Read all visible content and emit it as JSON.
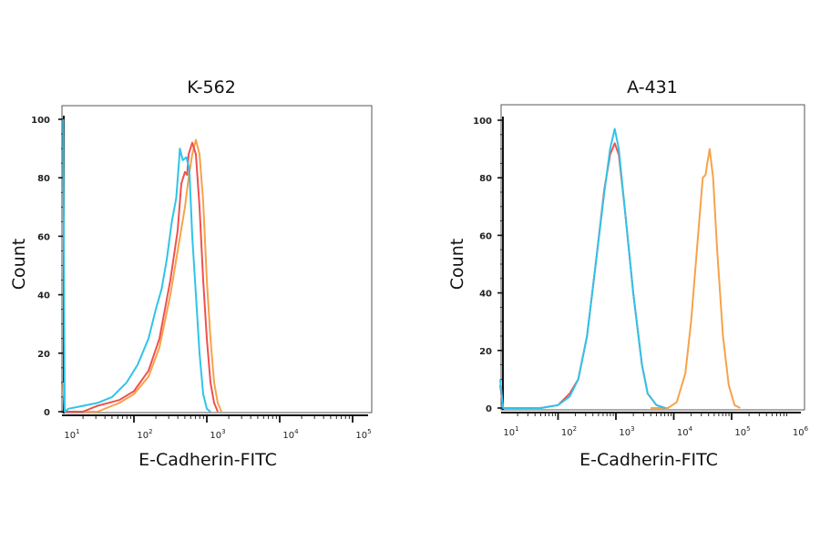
{
  "chart_data": [
    {
      "type": "line",
      "title": "K-562",
      "xlabel": "E-Cadherin-FITC",
      "ylabel": "Count",
      "xscale": "log",
      "xlim_log10": [
        1,
        5.2
      ],
      "ylim": [
        0,
        100
      ],
      "xticks": [
        "10^1",
        "10^2",
        "10^3",
        "10^4",
        "10^5"
      ],
      "yticks": [
        "0",
        "20",
        "40",
        "60",
        "80",
        "100"
      ],
      "grid": false,
      "series": [
        {
          "color": "#f7a24a",
          "x_log10": [
            1.03,
            1.05,
            1.5,
            1.8,
            2.0,
            2.2,
            2.35,
            2.5,
            2.6,
            2.7,
            2.75,
            2.8,
            2.85,
            2.9,
            2.95,
            3.0,
            3.05,
            3.1,
            3.15,
            3.2
          ],
          "y": [
            10,
            0,
            0,
            3,
            6,
            12,
            22,
            40,
            55,
            70,
            80,
            88,
            93,
            88,
            72,
            45,
            25,
            10,
            3,
            0
          ]
        },
        {
          "color": "#f05050",
          "x_log10": [
            1.05,
            1.3,
            1.5,
            1.8,
            2.0,
            2.2,
            2.35,
            2.5,
            2.6,
            2.65,
            2.7,
            2.73,
            2.75,
            2.8,
            2.85,
            2.9,
            2.95,
            3.0,
            3.05,
            3.1,
            3.15
          ],
          "y": [
            0,
            0,
            2,
            4,
            7,
            14,
            25,
            45,
            62,
            78,
            82,
            81,
            88,
            92,
            88,
            70,
            45,
            25,
            10,
            3,
            0
          ]
        },
        {
          "color": "#2ec4e8",
          "x_log10": [
            1.03,
            1.05,
            1.1,
            1.3,
            1.5,
            1.7,
            1.9,
            2.05,
            2.2,
            2.3,
            2.38,
            2.45,
            2.52,
            2.58,
            2.62,
            2.63,
            2.67,
            2.72,
            2.76,
            2.8,
            2.85,
            2.9,
            2.95,
            3.0,
            3.05
          ],
          "y": [
            100,
            0,
            1,
            2,
            3,
            5,
            10,
            16,
            25,
            35,
            42,
            52,
            65,
            73,
            86,
            90,
            86,
            87,
            83,
            60,
            40,
            20,
            6,
            1,
            0
          ]
        }
      ]
    },
    {
      "type": "line",
      "title": "A-431",
      "xlabel": "E-Cadherin-FITC",
      "ylabel": "Count",
      "xscale": "log",
      "xlim_log10": [
        1,
        6.2
      ],
      "ylim": [
        0,
        100
      ],
      "xticks": [
        "10^1",
        "10^2",
        "10^3",
        "10^4",
        "10^5",
        "10^6"
      ],
      "yticks": [
        "0",
        "20",
        "40",
        "60",
        "80",
        "100"
      ],
      "grid": false,
      "series": [
        {
          "color": "#f7a24a",
          "x_log10": [
            3.6,
            3.9,
            4.05,
            4.2,
            4.3,
            4.4,
            4.5,
            4.55,
            4.58,
            4.62,
            4.68,
            4.75,
            4.85,
            4.95,
            5.05,
            5.15
          ],
          "y": [
            0,
            0,
            2,
            12,
            30,
            55,
            80,
            81,
            85,
            90,
            80,
            55,
            25,
            8,
            1,
            0
          ]
        },
        {
          "color": "#f05050",
          "x_log10": [
            1.0,
            1.05,
            1.7,
            2.0,
            2.2,
            2.35,
            2.5,
            2.65,
            2.8,
            2.9,
            2.98,
            3.05,
            3.15,
            3.3,
            3.45,
            3.55,
            3.7,
            3.85
          ],
          "y": [
            8,
            0,
            0,
            1,
            5,
            10,
            25,
            50,
            76,
            88,
            92,
            88,
            70,
            40,
            15,
            5,
            1,
            0
          ]
        },
        {
          "color": "#2ec4e8",
          "x_log10": [
            1.0,
            1.05,
            1.7,
            2.0,
            2.2,
            2.35,
            2.5,
            2.65,
            2.8,
            2.9,
            2.98,
            3.05,
            3.15,
            3.3,
            3.45,
            3.55,
            3.7,
            3.85
          ],
          "y": [
            10,
            0,
            0,
            1,
            4,
            10,
            25,
            50,
            75,
            90,
            97,
            90,
            70,
            40,
            15,
            5,
            1,
            0
          ]
        }
      ]
    }
  ]
}
